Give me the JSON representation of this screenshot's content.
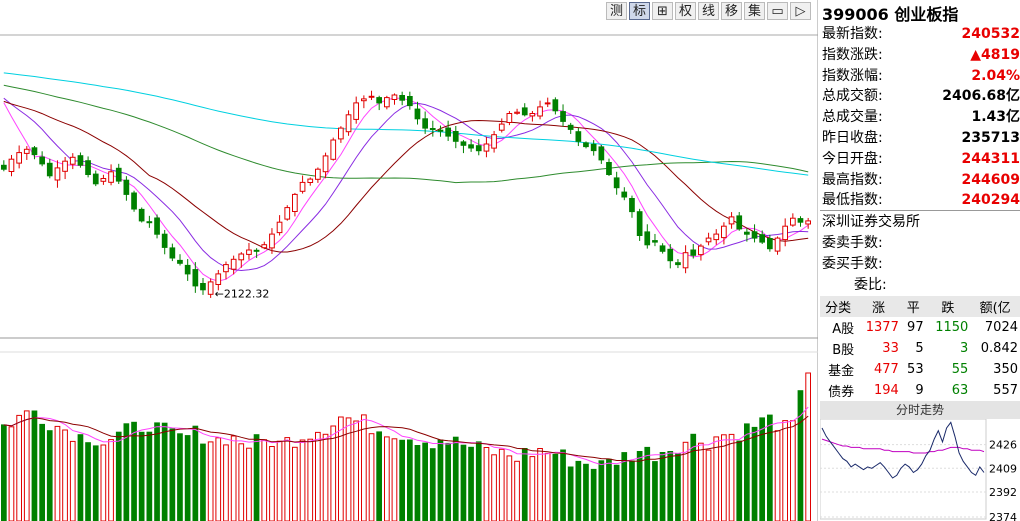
{
  "toolbar": {
    "buttons": [
      {
        "label": "测",
        "icon": null
      },
      {
        "label": "标",
        "icon": null,
        "active": true
      },
      {
        "label": "",
        "icon": "grid-icon"
      },
      {
        "label": "权",
        "icon": null
      },
      {
        "label": "线",
        "icon": null
      },
      {
        "label": "移",
        "icon": null
      },
      {
        "label": "集",
        "icon": null
      },
      {
        "label": "",
        "icon": "window-icon"
      },
      {
        "label": "",
        "icon": "collapse-right-icon"
      }
    ]
  },
  "stock": {
    "code": "399006",
    "name": "创业板指"
  },
  "quote": [
    {
      "label": "最新指数:",
      "value": "240532",
      "color": "red"
    },
    {
      "label": "指数涨跌:",
      "value": "▲4819",
      "color": "red"
    },
    {
      "label": "指数涨幅:",
      "value": "2.04%",
      "color": "red"
    },
    {
      "label": "总成交额:",
      "value": "2406.68亿",
      "color": "blk"
    },
    {
      "label": "总成交量:",
      "value": "1.43亿",
      "color": "blk"
    },
    {
      "label": "昨日收盘:",
      "value": "235713",
      "color": "blk"
    },
    {
      "label": "今日开盘:",
      "value": "244311",
      "color": "red"
    },
    {
      "label": "最高指数:",
      "value": "244609",
      "color": "red"
    },
    {
      "label": "最低指数:",
      "value": "240294",
      "color": "red"
    }
  ],
  "exchange": {
    "name": "深圳证券交易所",
    "sell_orders": "委卖手数:",
    "buy_orders": "委买手数:",
    "ratio": "委比:"
  },
  "classification": {
    "headers": [
      "分类",
      "涨",
      "平",
      "跌",
      "额(亿"
    ],
    "rows": [
      {
        "name": "A股",
        "up": "1377",
        "flat": "97",
        "down": "1150",
        "amount": "7024"
      },
      {
        "name": "B股",
        "up": "33",
        "flat": "5",
        "down": "3",
        "amount": "0.842"
      },
      {
        "name": "基金",
        "up": "477",
        "flat": "53",
        "down": "55",
        "amount": "350"
      },
      {
        "name": "债券",
        "up": "194",
        "flat": "9",
        "down": "63",
        "amount": "557"
      }
    ]
  },
  "intraday": {
    "title": "分时走势",
    "levels": [
      "2426",
      "2409",
      "2392",
      "2374"
    ],
    "price_min": 2374,
    "price_max": 2443,
    "price": [
      2438,
      2432,
      2428,
      2424,
      2420,
      2416,
      2414,
      2410,
      2412,
      2410,
      2408,
      2410,
      2409,
      2411,
      2413,
      2410,
      2406,
      2402,
      2404,
      2409,
      2412,
      2410,
      2406,
      2408,
      2412,
      2418,
      2422,
      2430,
      2436,
      2428,
      2438,
      2442,
      2432,
      2420,
      2414,
      2410,
      2406,
      2404,
      2410,
      2406
    ],
    "avg": [
      2430,
      2429,
      2428,
      2427,
      2426,
      2425,
      2425,
      2424,
      2424,
      2424,
      2423,
      2423,
      2423,
      2423,
      2423,
      2422,
      2422,
      2421,
      2421,
      2421,
      2421,
      2421,
      2420,
      2420,
      2420,
      2420,
      2421,
      2421,
      2422,
      2422,
      2423,
      2424,
      2424,
      2424,
      2423,
      2423,
      2422,
      2422,
      2422,
      2421
    ]
  },
  "chart_data": {
    "type": "candlestick",
    "title": "399006 创业板指",
    "y_range": [
      2090,
      2520
    ],
    "volume_range": [
      0,
      100
    ],
    "annotations": [
      {
        "text": "←2122.32",
        "index": 27,
        "value": 2122.32
      }
    ],
    "moving_averages": [
      {
        "name": "MA5",
        "color": "#ff44ff",
        "period": 5
      },
      {
        "name": "MA10",
        "color": "#8a2be2",
        "period": 10
      },
      {
        "name": "MA20",
        "color": "#8b0000",
        "period": 20
      },
      {
        "name": "MA60",
        "color": "#2e8b2e",
        "period": 60
      },
      {
        "name": "MA120",
        "color": "#00d0e0",
        "period": 120
      }
    ],
    "close_path": [
      2310,
      2325,
      2335,
      2340,
      2332,
      2318,
      2300,
      2312,
      2322,
      2328,
      2316,
      2302,
      2288,
      2296,
      2306,
      2292,
      2272,
      2250,
      2232,
      2230,
      2212,
      2192,
      2176,
      2168,
      2152,
      2134,
      2128,
      2140,
      2152,
      2166,
      2174,
      2182,
      2188,
      2186,
      2196,
      2212,
      2230,
      2252,
      2272,
      2290,
      2295,
      2310,
      2330,
      2354,
      2372,
      2392,
      2410,
      2416,
      2420,
      2410,
      2418,
      2422,
      2414,
      2406,
      2386,
      2372,
      2370,
      2368,
      2360,
      2352,
      2346,
      2342,
      2338,
      2348,
      2362,
      2378,
      2394,
      2396,
      2392,
      2394,
      2404,
      2410,
      2398,
      2382,
      2370,
      2352,
      2344,
      2338,
      2324,
      2302,
      2282,
      2268,
      2246,
      2210,
      2196,
      2200,
      2186,
      2172,
      2166,
      2184,
      2180,
      2194,
      2206,
      2212,
      2224,
      2238,
      2220,
      2212,
      2206,
      2200,
      2190,
      2206,
      2224,
      2236,
      2230,
      2232
    ],
    "volume_pattern": [
      52,
      55,
      58,
      60,
      62,
      58,
      55,
      52,
      50,
      48,
      45,
      46,
      44,
      42,
      44,
      46,
      48,
      50,
      52,
      54,
      50,
      48,
      46,
      44,
      45,
      47,
      46,
      44,
      43,
      45,
      44,
      42,
      40,
      41,
      42,
      43,
      40,
      42,
      44,
      46,
      48,
      50,
      52,
      55,
      58,
      57,
      55,
      54,
      52,
      50,
      50,
      48,
      47,
      45,
      44,
      43,
      42,
      44,
      43,
      41,
      40,
      38,
      37,
      36,
      35,
      34,
      33,
      32,
      34,
      35,
      36,
      35,
      34,
      32,
      30,
      29,
      28,
      27,
      26,
      28,
      30,
      32,
      34,
      36,
      35,
      34,
      36,
      38,
      40,
      42,
      44,
      43,
      42,
      45,
      47,
      46,
      48,
      50,
      52,
      55,
      56,
      54,
      50,
      52,
      70,
      90
    ]
  }
}
